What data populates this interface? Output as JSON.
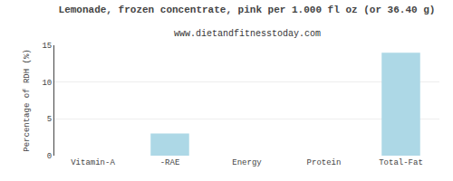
{
  "chart_data": {
    "type": "bar",
    "title": "Lemonade, frozen concentrate, pink per 1.000 fl oz (or 36.40 g)",
    "subtitle": "www.dietandfitnesstoday.com",
    "categories": [
      "Vitamin-A",
      "-RAE",
      "Energy",
      "Protein",
      "Total-Fat"
    ],
    "values": [
      0,
      3.0,
      0,
      0,
      14.0
    ],
    "color": "#add8e6",
    "ylabel": "Percentage of RDH (%)",
    "ylim": [
      0,
      15
    ],
    "yticks": [
      0,
      5,
      10,
      15
    ],
    "grid": true
  }
}
